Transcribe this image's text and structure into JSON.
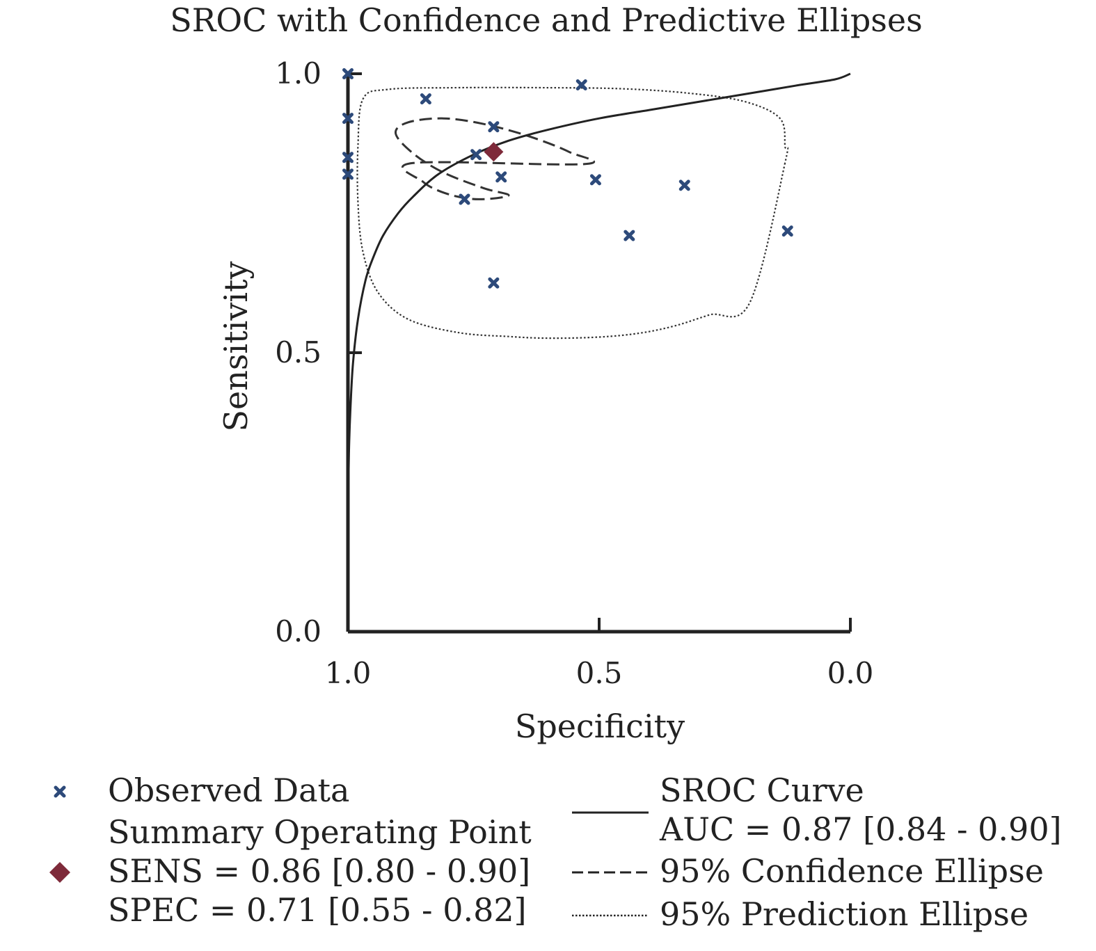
{
  "chart_data": {
    "type": "scatter",
    "title": "SROC with Confidence and Predictive Ellipses",
    "xlabel": "Specificity",
    "ylabel": "Sensitivity",
    "x_reversed": true,
    "xlim": [
      1.0,
      0.0
    ],
    "ylim": [
      0.0,
      1.0
    ],
    "x_ticks": [
      "1.0",
      "0.5",
      "0.0"
    ],
    "y_ticks": [
      "0.0",
      "0.5",
      "1.0"
    ],
    "grid": false,
    "colors": {
      "observed": "#2d4a7a",
      "summary": "#7e2a3a",
      "curve": "#222222"
    },
    "series": [
      {
        "name": "Observed Data",
        "marker": "x",
        "points": [
          {
            "x": 1.0,
            "y": 1.0
          },
          {
            "x": 1.0,
            "y": 0.92
          },
          {
            "x": 1.0,
            "y": 0.85
          },
          {
            "x": 1.0,
            "y": 0.82
          },
          {
            "x": 0.845,
            "y": 0.955
          },
          {
            "x": 0.535,
            "y": 0.98
          },
          {
            "x": 0.71,
            "y": 0.905
          },
          {
            "x": 0.745,
            "y": 0.855
          },
          {
            "x": 0.695,
            "y": 0.815
          },
          {
            "x": 0.768,
            "y": 0.775
          },
          {
            "x": 0.507,
            "y": 0.81
          },
          {
            "x": 0.33,
            "y": 0.8
          },
          {
            "x": 0.44,
            "y": 0.71
          },
          {
            "x": 0.125,
            "y": 0.718
          },
          {
            "x": 0.71,
            "y": 0.625
          }
        ]
      },
      {
        "name": "Summary Operating Point",
        "marker": "diamond",
        "points": [
          {
            "x": 0.71,
            "y": 0.86
          }
        ]
      }
    ],
    "curves": {
      "sroc": {
        "name": "SROC Curve",
        "points": [
          [
            1.0,
            0.2
          ],
          [
            0.998,
            0.32
          ],
          [
            0.995,
            0.4
          ],
          [
            0.99,
            0.48
          ],
          [
            0.98,
            0.56
          ],
          [
            0.965,
            0.63
          ],
          [
            0.95,
            0.67
          ],
          [
            0.93,
            0.71
          ],
          [
            0.9,
            0.75
          ],
          [
            0.87,
            0.78
          ],
          [
            0.82,
            0.82
          ],
          [
            0.75,
            0.855
          ],
          [
            0.68,
            0.88
          ],
          [
            0.6,
            0.9
          ],
          [
            0.5,
            0.92
          ],
          [
            0.4,
            0.935
          ],
          [
            0.3,
            0.95
          ],
          [
            0.2,
            0.965
          ],
          [
            0.1,
            0.98
          ],
          [
            0.03,
            0.99
          ],
          [
            0.0,
            1.0
          ]
        ]
      },
      "confidence_ellipse": {
        "name": "95% Confidence Ellipse",
        "points": [
          [
            0.87,
            0.84
          ],
          [
            0.85,
            0.806
          ],
          [
            0.8,
            0.784
          ],
          [
            0.74,
            0.775
          ],
          [
            0.68,
            0.782
          ],
          [
            0.73,
            0.795
          ],
          [
            0.81,
            0.823
          ],
          [
            0.87,
            0.857
          ],
          [
            0.905,
            0.893
          ],
          [
            0.88,
            0.913
          ],
          [
            0.81,
            0.92
          ],
          [
            0.73,
            0.91
          ],
          [
            0.64,
            0.888
          ],
          [
            0.56,
            0.86
          ],
          [
            0.53,
            0.838
          ]
        ]
      },
      "prediction_ellipse": {
        "name": "95% Prediction Ellipse",
        "points": [
          [
            0.13,
            0.84
          ],
          [
            0.2,
            0.59
          ],
          [
            0.28,
            0.568
          ],
          [
            0.35,
            0.548
          ],
          [
            0.42,
            0.535
          ],
          [
            0.5,
            0.528
          ],
          [
            0.6,
            0.526
          ],
          [
            0.68,
            0.529
          ],
          [
            0.78,
            0.536
          ],
          [
            0.88,
            0.56
          ],
          [
            0.94,
            0.608
          ],
          [
            0.97,
            0.68
          ],
          [
            0.98,
            0.77
          ],
          [
            0.98,
            0.87
          ],
          [
            0.97,
            0.955
          ],
          [
            0.92,
            0.972
          ],
          [
            0.79,
            0.975
          ],
          [
            0.6,
            0.975
          ],
          [
            0.45,
            0.973
          ],
          [
            0.32,
            0.965
          ],
          [
            0.21,
            0.95
          ],
          [
            0.14,
            0.92
          ],
          [
            0.13,
            0.87
          ]
        ]
      }
    },
    "legend": {
      "placement": "bottom",
      "left_items": [
        {
          "symbol": "x",
          "lines": [
            "Observed Data"
          ]
        },
        {
          "symbol": "diamond",
          "lines": [
            "Summary Operating Point",
            "SENS = 0.86 [0.80 - 0.90]",
            "SPEC = 0.71 [0.55 - 0.82]"
          ]
        }
      ],
      "right_items": [
        {
          "symbol": "solid",
          "lines": [
            "SROC Curve",
            "AUC = 0.87 [0.84 - 0.90]"
          ]
        },
        {
          "symbol": "dashed",
          "lines": [
            "95% Confidence Ellipse"
          ]
        },
        {
          "symbol": "dotted",
          "lines": [
            "95% Prediction Ellipse"
          ]
        }
      ]
    }
  }
}
